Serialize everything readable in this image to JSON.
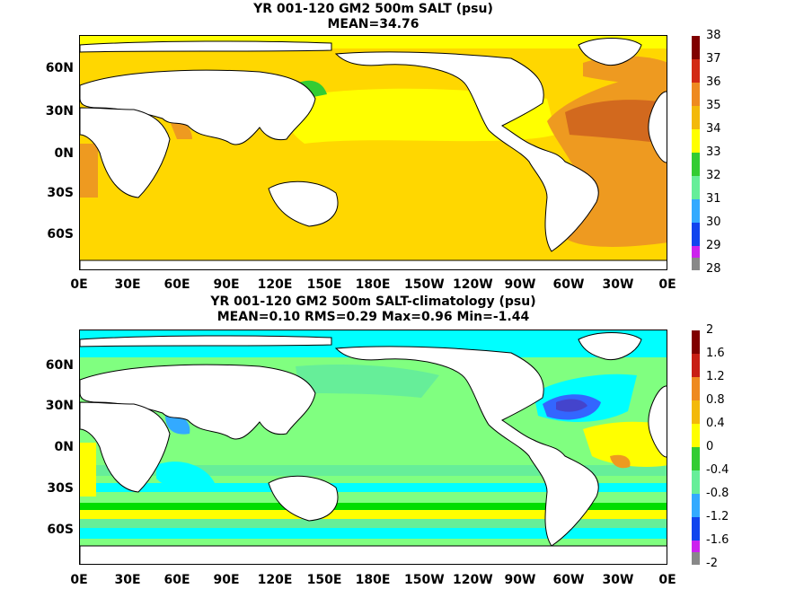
{
  "panels": [
    {
      "title_line1": "YR 001-120 GM2 500m SALT (psu)",
      "title_line2": "MEAN=34.76",
      "background": "#ffd700",
      "colorbar": {
        "ticks": [
          "38",
          "37",
          "36",
          "35",
          "34",
          "33",
          "32",
          "31",
          "30",
          "29",
          "28"
        ],
        "colors": [
          "#800000",
          "#d22a14",
          "#ee8a20",
          "#f3b90a",
          "#ffff00",
          "#33cc33",
          "#66ee99",
          "#33aaff",
          "#1144ee",
          "#cc22ee",
          "#888888"
        ]
      },
      "x_ticks": [
        "0E",
        "30E",
        "60E",
        "90E",
        "120E",
        "150E",
        "180E",
        "150W",
        "120W",
        "90W",
        "60W",
        "30W",
        "0E"
      ],
      "y_ticks": [
        "60N",
        "30N",
        "0N",
        "30S",
        "60S"
      ]
    },
    {
      "title_line1": "YR 001-120 GM2 500m SALT-climatology (psu)",
      "title_line2": "MEAN=0.10   RMS=0.29   Max=0.96   Min=-1.44",
      "background": "#80ff80",
      "colorbar": {
        "ticks": [
          "2",
          "1.6",
          "1.2",
          "0.8",
          "0.4",
          "0",
          "-0.4",
          "-0.8",
          "-1.2",
          "-1.6",
          "-2"
        ],
        "colors": [
          "#800000",
          "#c81e14",
          "#ee8a20",
          "#f3b90a",
          "#ffff00",
          "#33cc33",
          "#66ee99",
          "#33aaff",
          "#1144ee",
          "#cc22ee",
          "#888888"
        ]
      },
      "x_ticks": [
        "0E",
        "30E",
        "60E",
        "90E",
        "120E",
        "150E",
        "180E",
        "150W",
        "120W",
        "90W",
        "60W",
        "30W",
        "0E"
      ],
      "y_ticks": [
        "60N",
        "30N",
        "0N",
        "30S",
        "60S"
      ]
    }
  ]
}
